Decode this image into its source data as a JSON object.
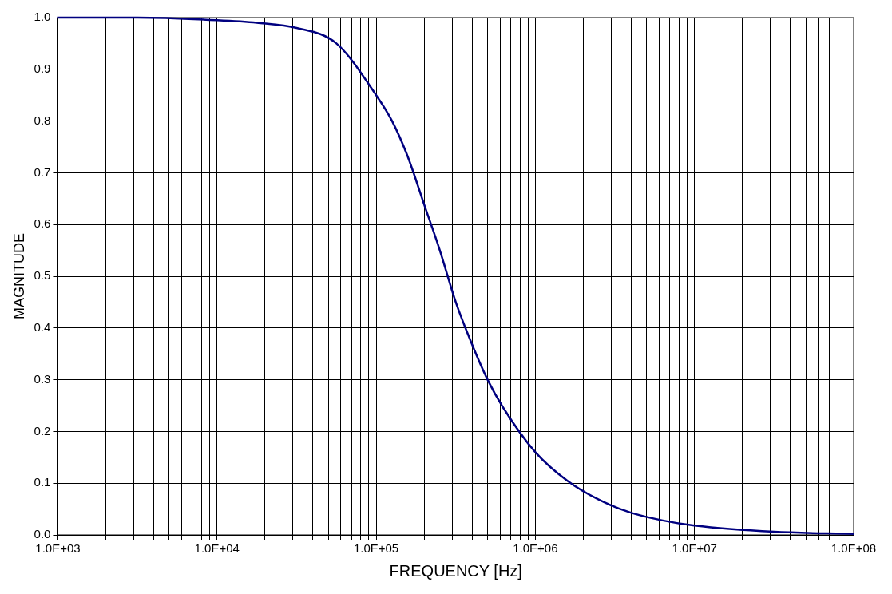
{
  "chart_data": {
    "type": "line",
    "xlabel": "FREQUENCY [Hz]",
    "ylabel": "MAGNITUDE",
    "log": "x",
    "grid": true,
    "legend": false,
    "marker": "none",
    "line_style": "solid",
    "x": [
      1000,
      3162,
      10000,
      17783,
      31623,
      56234,
      100000,
      125893,
      158489,
      199526,
      251189,
      316228,
      398107,
      501187,
      630957,
      1000000,
      1584893,
      2511886,
      3981072,
      6309573,
      10000000,
      31622777,
      100000000
    ],
    "series": [
      {
        "color": "#000080",
        "values": [
          1.0,
          1.0,
          0.995,
          0.99,
          0.98,
          0.95,
          0.85,
          0.8,
          0.73,
          0.64,
          0.55,
          0.45,
          0.37,
          0.3,
          0.245,
          0.16,
          0.105,
          0.068,
          0.043,
          0.028,
          0.018,
          0.006,
          0.002
        ]
      }
    ],
    "xlim": [
      1000,
      100000000
    ],
    "xticks": [
      {
        "value": 1000,
        "label": "1.0E+03"
      },
      {
        "value": 2000,
        "label": null
      },
      {
        "value": 3000,
        "label": null
      },
      {
        "value": 4000,
        "label": null
      },
      {
        "value": 5000,
        "label": null
      },
      {
        "value": 6000,
        "label": null
      },
      {
        "value": 7000,
        "label": null
      },
      {
        "value": 8000,
        "label": null
      },
      {
        "value": 9000,
        "label": null
      },
      {
        "value": 10000,
        "label": "1.0E+04"
      },
      {
        "value": 20000,
        "label": null
      },
      {
        "value": 30000,
        "label": null
      },
      {
        "value": 40000,
        "label": null
      },
      {
        "value": 50000,
        "label": null
      },
      {
        "value": 60000,
        "label": null
      },
      {
        "value": 70000,
        "label": null
      },
      {
        "value": 80000,
        "label": null
      },
      {
        "value": 90000,
        "label": null
      },
      {
        "value": 100000,
        "label": "1.0E+05"
      },
      {
        "value": 200000,
        "label": null
      },
      {
        "value": 300000,
        "label": null
      },
      {
        "value": 400000,
        "label": null
      },
      {
        "value": 500000,
        "label": null
      },
      {
        "value": 600000,
        "label": null
      },
      {
        "value": 700000,
        "label": null
      },
      {
        "value": 800000,
        "label": null
      },
      {
        "value": 900000,
        "label": null
      },
      {
        "value": 1000000,
        "label": "1.0E+06"
      },
      {
        "value": 2000000,
        "label": null
      },
      {
        "value": 3000000,
        "label": null
      },
      {
        "value": 4000000,
        "label": null
      },
      {
        "value": 5000000,
        "label": null
      },
      {
        "value": 6000000,
        "label": null
      },
      {
        "value": 7000000,
        "label": null
      },
      {
        "value": 8000000,
        "label": null
      },
      {
        "value": 9000000,
        "label": null
      },
      {
        "value": 10000000,
        "label": "1.0E+07"
      },
      {
        "value": 20000000,
        "label": null
      },
      {
        "value": 30000000,
        "label": null
      },
      {
        "value": 40000000,
        "label": null
      },
      {
        "value": 50000000,
        "label": null
      },
      {
        "value": 60000000,
        "label": null
      },
      {
        "value": 70000000,
        "label": null
      },
      {
        "value": 80000000,
        "label": null
      },
      {
        "value": 90000000,
        "label": null
      },
      {
        "value": 100000000,
        "label": "1.0E+08"
      }
    ],
    "ylim": [
      0,
      1
    ],
    "yticks": [
      {
        "value": 0,
        "label": "0.0"
      },
      {
        "value": 0.1,
        "label": "0.1"
      },
      {
        "value": 0.2,
        "label": "0.2"
      },
      {
        "value": 0.3,
        "label": "0.3"
      },
      {
        "value": 0.4,
        "label": "0.4"
      },
      {
        "value": 0.5,
        "label": "0.5"
      },
      {
        "value": 0.6,
        "label": "0.6"
      },
      {
        "value": 0.7,
        "label": "0.7"
      },
      {
        "value": 0.8,
        "label": "0.8"
      },
      {
        "value": 0.9,
        "label": "0.9"
      },
      {
        "value": 1,
        "label": "1.0"
      }
    ]
  }
}
